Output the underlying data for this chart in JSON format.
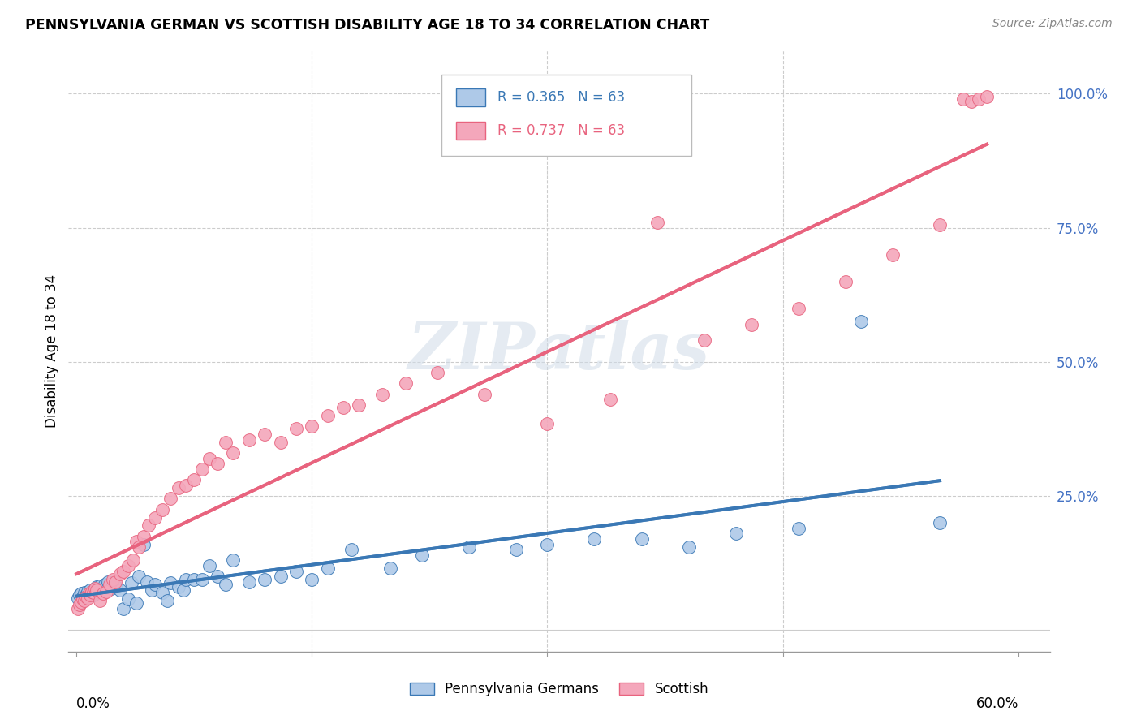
{
  "title": "PENNSYLVANIA GERMAN VS SCOTTISH DISABILITY AGE 18 TO 34 CORRELATION CHART",
  "source": "Source: ZipAtlas.com",
  "ylabel": "Disability Age 18 to 34",
  "legend1_label": "Pennsylvania Germans",
  "legend2_label": "Scottish",
  "R1": 0.365,
  "N1": 63,
  "R2": 0.737,
  "N2": 63,
  "color_blue": "#aec9e8",
  "color_pink": "#f4a7bb",
  "line_color_blue": "#3a78b5",
  "line_color_pink": "#e8637e",
  "watermark": "ZIPatlas",
  "blue_x": [
    0.001,
    0.002,
    0.003,
    0.004,
    0.005,
    0.006,
    0.007,
    0.008,
    0.009,
    0.01,
    0.011,
    0.012,
    0.013,
    0.014,
    0.015,
    0.016,
    0.017,
    0.018,
    0.019,
    0.02,
    0.022,
    0.025,
    0.028,
    0.03,
    0.033,
    0.035,
    0.038,
    0.04,
    0.043,
    0.045,
    0.048,
    0.05,
    0.055,
    0.058,
    0.06,
    0.065,
    0.068,
    0.07,
    0.075,
    0.08,
    0.085,
    0.09,
    0.095,
    0.1,
    0.11,
    0.12,
    0.13,
    0.14,
    0.15,
    0.16,
    0.175,
    0.2,
    0.22,
    0.25,
    0.28,
    0.3,
    0.33,
    0.36,
    0.39,
    0.42,
    0.46,
    0.5,
    0.55
  ],
  "blue_y": [
    0.06,
    0.065,
    0.068,
    0.062,
    0.07,
    0.065,
    0.072,
    0.068,
    0.075,
    0.07,
    0.065,
    0.078,
    0.08,
    0.072,
    0.082,
    0.075,
    0.078,
    0.085,
    0.08,
    0.09,
    0.078,
    0.082,
    0.075,
    0.04,
    0.058,
    0.088,
    0.05,
    0.1,
    0.16,
    0.09,
    0.075,
    0.085,
    0.07,
    0.055,
    0.088,
    0.08,
    0.075,
    0.095,
    0.095,
    0.095,
    0.12,
    0.1,
    0.085,
    0.13,
    0.09,
    0.095,
    0.1,
    0.11,
    0.095,
    0.115,
    0.15,
    0.115,
    0.14,
    0.155,
    0.15,
    0.16,
    0.17,
    0.17,
    0.155,
    0.18,
    0.19,
    0.575,
    0.2
  ],
  "pink_x": [
    0.001,
    0.002,
    0.003,
    0.004,
    0.005,
    0.006,
    0.007,
    0.008,
    0.009,
    0.01,
    0.011,
    0.012,
    0.013,
    0.015,
    0.017,
    0.019,
    0.021,
    0.023,
    0.025,
    0.028,
    0.03,
    0.033,
    0.036,
    0.038,
    0.04,
    0.043,
    0.046,
    0.05,
    0.055,
    0.06,
    0.065,
    0.07,
    0.075,
    0.08,
    0.085,
    0.09,
    0.095,
    0.1,
    0.11,
    0.12,
    0.13,
    0.14,
    0.15,
    0.16,
    0.17,
    0.18,
    0.195,
    0.21,
    0.23,
    0.26,
    0.3,
    0.34,
    0.37,
    0.4,
    0.43,
    0.46,
    0.49,
    0.52,
    0.55,
    0.565,
    0.57,
    0.575,
    0.58
  ],
  "pink_y": [
    0.04,
    0.048,
    0.052,
    0.058,
    0.055,
    0.062,
    0.06,
    0.068,
    0.065,
    0.072,
    0.07,
    0.078,
    0.075,
    0.055,
    0.068,
    0.072,
    0.085,
    0.095,
    0.09,
    0.105,
    0.11,
    0.12,
    0.13,
    0.165,
    0.155,
    0.175,
    0.195,
    0.21,
    0.225,
    0.245,
    0.265,
    0.27,
    0.28,
    0.3,
    0.32,
    0.31,
    0.35,
    0.33,
    0.355,
    0.365,
    0.35,
    0.375,
    0.38,
    0.4,
    0.415,
    0.42,
    0.44,
    0.46,
    0.48,
    0.44,
    0.385,
    0.43,
    0.76,
    0.54,
    0.57,
    0.6,
    0.65,
    0.7,
    0.755,
    0.99,
    0.985,
    0.99,
    0.995
  ]
}
